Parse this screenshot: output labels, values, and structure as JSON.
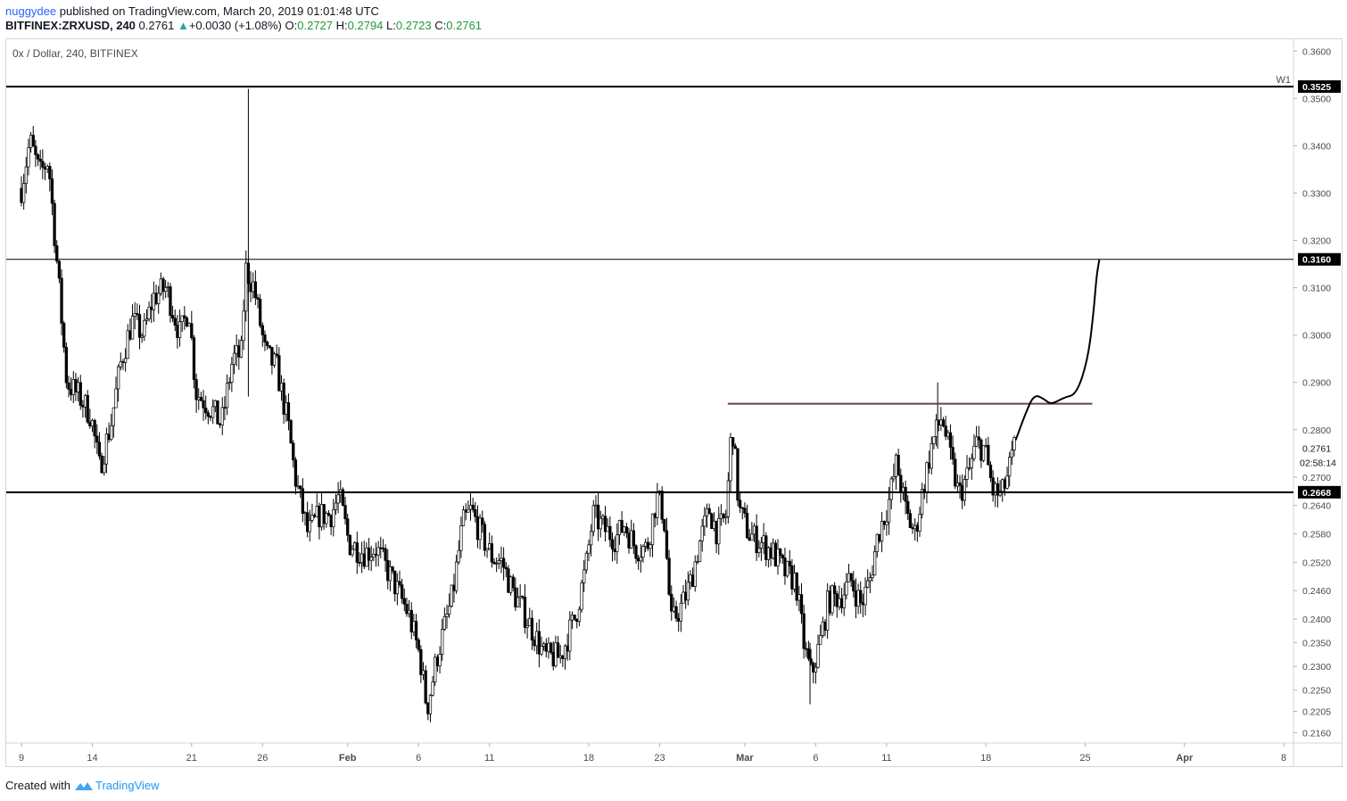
{
  "header": {
    "author": "nuggydee",
    "published": " published on TradingView.com, March 20, 2019 01:01:48 UTC",
    "symbol": "BITFINEX:ZRXUSD, 240",
    "last": "0.2761",
    "change": "+0.0030 (+1.08%)",
    "o_label": "O:",
    "o": "0.2727",
    "h_label": "H:",
    "h": "0.2794",
    "l_label": "L:",
    "l": "0.2723",
    "c_label": "C:",
    "c": "0.2761"
  },
  "legend": "0x / Dollar, 240, BITFINEX",
  "footer": {
    "created": "Created with",
    "brand": "TradingView"
  },
  "colors": {
    "candle": "#000000",
    "resistance": "#6b3e5b",
    "axis_text": "#4b4b4b",
    "badge_bg": "#000000",
    "badge_text": "#ffffff"
  },
  "chart_data": {
    "type": "candlestick",
    "symbol": "BITFINEX:ZRXUSD",
    "timeframe": "240",
    "ylim": [
      0.214,
      0.3625
    ],
    "y_ticks": [
      {
        "value": 0.36,
        "label": "0.3600"
      },
      {
        "value": 0.35,
        "label": "0.3500"
      },
      {
        "value": 0.34,
        "label": "0.3400"
      },
      {
        "value": 0.33,
        "label": "0.3300"
      },
      {
        "value": 0.32,
        "label": "0.3200"
      },
      {
        "value": 0.31,
        "label": "0.3100"
      },
      {
        "value": 0.3,
        "label": "0.3000"
      },
      {
        "value": 0.29,
        "label": "0.2900"
      },
      {
        "value": 0.28,
        "label": "0.2800"
      },
      {
        "value": 0.2761,
        "label": "0.2761"
      },
      {
        "value": 0.27,
        "label": "0.2700"
      },
      {
        "value": 0.264,
        "label": "0.2640"
      },
      {
        "value": 0.258,
        "label": "0.2580"
      },
      {
        "value": 0.252,
        "label": "0.2520"
      },
      {
        "value": 0.246,
        "label": "0.2460"
      },
      {
        "value": 0.24,
        "label": "0.2400"
      },
      {
        "value": 0.235,
        "label": "0.2350"
      },
      {
        "value": 0.23,
        "label": "0.2300"
      },
      {
        "value": 0.225,
        "label": "0.2250"
      },
      {
        "value": 0.2205,
        "label": "0.2205"
      },
      {
        "value": 0.216,
        "label": "0.2160"
      }
    ],
    "x_ticks": [
      {
        "label": "9",
        "day": 8
      },
      {
        "label": "14",
        "day": 13
      },
      {
        "label": "21",
        "day": 20
      },
      {
        "label": "26",
        "day": 25
      },
      {
        "label": "Feb",
        "day": 31
      },
      {
        "label": "6",
        "day": 36
      },
      {
        "label": "11",
        "day": 41
      },
      {
        "label": "18",
        "day": 48
      },
      {
        "label": "23",
        "day": 53
      },
      {
        "label": "Mar",
        "day": 59
      },
      {
        "label": "6",
        "day": 64
      },
      {
        "label": "11",
        "day": 69
      },
      {
        "label": "18",
        "day": 76
      },
      {
        "label": "25",
        "day": 83
      },
      {
        "label": "Apr",
        "day": 90
      },
      {
        "label": "8",
        "day": 97
      }
    ],
    "x_unit": "days since Jan 1 2019",
    "last_candle_day": 78.0,
    "levels": [
      {
        "value": 0.3525,
        "label": "0.3525",
        "tag": "W1",
        "weight": "thick"
      },
      {
        "value": 0.316,
        "label": "0.3160",
        "weight": "thin"
      },
      {
        "value": 0.2668,
        "label": "0.2668",
        "weight": "thick"
      }
    ],
    "current_price": {
      "value": 0.2761,
      "label": "0.2761",
      "countdown": "02:58:14"
    },
    "resistance": {
      "value": 0.2855,
      "from_day": 57.8,
      "to_day": 83.5
    },
    "projection": [
      [
        78.1,
        0.2778
      ],
      [
        78.8,
        0.2835
      ],
      [
        79.4,
        0.2875
      ],
      [
        80.1,
        0.2865
      ],
      [
        80.6,
        0.2853
      ],
      [
        81.5,
        0.2868
      ],
      [
        82.4,
        0.2875
      ],
      [
        83.2,
        0.295
      ],
      [
        83.6,
        0.305
      ],
      [
        83.8,
        0.3125
      ],
      [
        84.0,
        0.316
      ]
    ],
    "anchors": [
      [
        8.0,
        0.331
      ],
      [
        8.6,
        0.341
      ],
      [
        9.3,
        0.334
      ],
      [
        9.9,
        0.337
      ],
      [
        10.6,
        0.312
      ],
      [
        11.2,
        0.29
      ],
      [
        12.1,
        0.287
      ],
      [
        12.9,
        0.283
      ],
      [
        13.5,
        0.272
      ],
      [
        14.3,
        0.281
      ],
      [
        15.0,
        0.294
      ],
      [
        15.8,
        0.303
      ],
      [
        16.6,
        0.3
      ],
      [
        17.3,
        0.308
      ],
      [
        18.2,
        0.31
      ],
      [
        19.2,
        0.3
      ],
      [
        19.8,
        0.306
      ],
      [
        20.3,
        0.288
      ],
      [
        21.5,
        0.284
      ],
      [
        22.1,
        0.281
      ],
      [
        22.9,
        0.295
      ],
      [
        23.5,
        0.296
      ],
      [
        23.8,
        0.314
      ],
      [
        24.4,
        0.31
      ],
      [
        25.2,
        0.296
      ],
      [
        26.0,
        0.293
      ],
      [
        26.8,
        0.281
      ],
      [
        27.3,
        0.27
      ],
      [
        28.2,
        0.258
      ],
      [
        29.0,
        0.262
      ],
      [
        29.8,
        0.262
      ],
      [
        30.4,
        0.266
      ],
      [
        31.1,
        0.256
      ],
      [
        32.2,
        0.254
      ],
      [
        33.0,
        0.255
      ],
      [
        34.2,
        0.248
      ],
      [
        35.3,
        0.241
      ],
      [
        36.1,
        0.232
      ],
      [
        36.6,
        0.221
      ],
      [
        37.3,
        0.232
      ],
      [
        38.4,
        0.245
      ],
      [
        39.1,
        0.26
      ],
      [
        39.7,
        0.263
      ],
      [
        40.4,
        0.258
      ],
      [
        41.2,
        0.253
      ],
      [
        41.9,
        0.252
      ],
      [
        42.6,
        0.246
      ],
      [
        43.5,
        0.241
      ],
      [
        44.3,
        0.236
      ],
      [
        44.9,
        0.232
      ],
      [
        46.0,
        0.232
      ],
      [
        47.1,
        0.241
      ],
      [
        47.8,
        0.251
      ],
      [
        48.3,
        0.262
      ],
      [
        49.1,
        0.259
      ],
      [
        49.9,
        0.257
      ],
      [
        50.5,
        0.26
      ],
      [
        51.3,
        0.255
      ],
      [
        52.1,
        0.255
      ],
      [
        52.8,
        0.266
      ],
      [
        53.3,
        0.262
      ],
      [
        53.8,
        0.239
      ],
      [
        54.6,
        0.243
      ],
      [
        55.2,
        0.248
      ],
      [
        55.8,
        0.256
      ],
      [
        56.5,
        0.263
      ],
      [
        57.1,
        0.258
      ],
      [
        57.7,
        0.262
      ],
      [
        58.1,
        0.282
      ],
      [
        58.6,
        0.263
      ],
      [
        59.3,
        0.258
      ],
      [
        60.2,
        0.256
      ],
      [
        61.0,
        0.254
      ],
      [
        61.8,
        0.25
      ],
      [
        62.6,
        0.248
      ],
      [
        63.2,
        0.234
      ],
      [
        63.7,
        0.228
      ],
      [
        64.3,
        0.235
      ],
      [
        64.9,
        0.244
      ],
      [
        65.8,
        0.245
      ],
      [
        66.5,
        0.248
      ],
      [
        67.2,
        0.243
      ],
      [
        67.8,
        0.248
      ],
      [
        68.4,
        0.258
      ],
      [
        69.1,
        0.264
      ],
      [
        69.7,
        0.273
      ],
      [
        70.4,
        0.262
      ],
      [
        71.0,
        0.258
      ],
      [
        71.6,
        0.268
      ],
      [
        72.2,
        0.277
      ],
      [
        72.9,
        0.283
      ],
      [
        73.5,
        0.274
      ],
      [
        74.1,
        0.266
      ],
      [
        74.8,
        0.271
      ],
      [
        75.3,
        0.277
      ],
      [
        75.9,
        0.276
      ],
      [
        76.5,
        0.267
      ],
      [
        77.1,
        0.266
      ],
      [
        77.6,
        0.271
      ],
      [
        78.0,
        0.2761
      ]
    ],
    "spikes": [
      {
        "day": 24.0,
        "high": 0.352,
        "low": 0.287
      },
      {
        "day": 72.6,
        "high": 0.29,
        "low": 0.276
      },
      {
        "day": 63.6,
        "high": 0.235,
        "low": 0.222
      }
    ]
  }
}
